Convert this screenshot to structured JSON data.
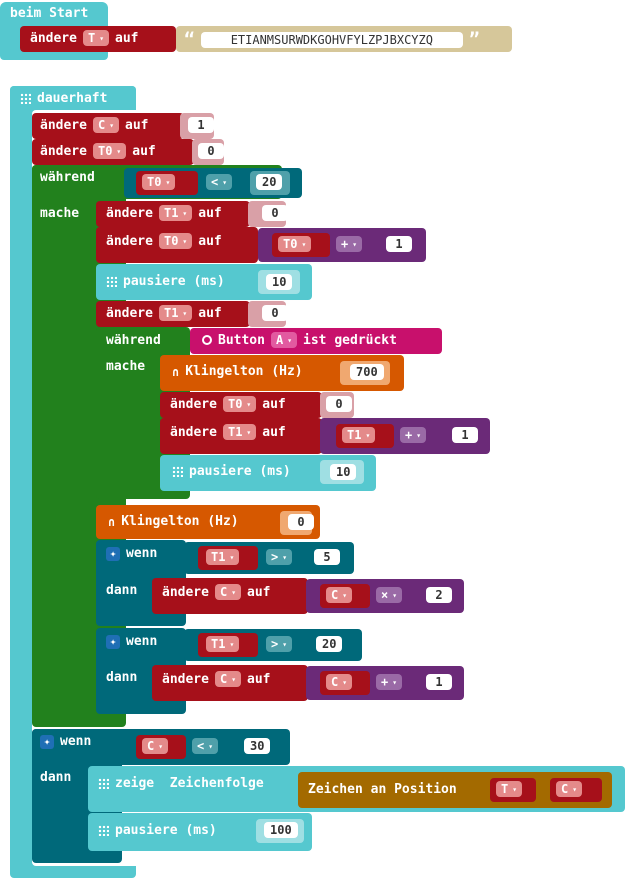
{
  "on_start": {
    "hat_label": "beim Start",
    "set_label": "ändere",
    "var": "T",
    "to_label": "auf",
    "string_value": "ETIANMSURWDKGOHVFYLZPJBXCYZQ",
    "quote_open": "“",
    "quote_close": "”"
  },
  "forever": {
    "hat_label": "dauerhaft",
    "set_c": {
      "set": "ändere",
      "var": "C",
      "to": "auf",
      "value": "1"
    },
    "set_t0": {
      "set": "ändere",
      "var": "T0",
      "to": "auf",
      "value": "0"
    },
    "while1": {
      "while_label": "während",
      "do_label": "mache",
      "cond": {
        "var": "T0",
        "op": "<",
        "value": "20"
      },
      "set_t1_a": {
        "set": "ändere",
        "var": "T1",
        "to": "auf",
        "value": "0"
      },
      "set_t0_inc": {
        "set": "ändere",
        "var": "T0",
        "to": "auf",
        "lhs": "T0",
        "op": "+",
        "rhs": "1"
      },
      "pause1": {
        "label": "pausiere (ms)",
        "value": "10"
      },
      "set_t1_b": {
        "set": "ändere",
        "var": "T1",
        "to": "auf",
        "value": "0"
      },
      "while2": {
        "while_label": "während",
        "do_label": "mache",
        "cond": {
          "label": "Button",
          "button": "A",
          "suffix": "ist gedrückt"
        },
        "tone": {
          "label": "Klingelton (Hz)",
          "value": "700"
        },
        "set_t0_z": {
          "set": "ändere",
          "var": "T0",
          "to": "auf",
          "value": "0"
        },
        "set_t1_inc": {
          "set": "ändere",
          "var": "T1",
          "to": "auf",
          "lhs": "T1",
          "op": "+",
          "rhs": "1"
        },
        "pause2": {
          "label": "pausiere (ms)",
          "value": "10"
        }
      },
      "tone0": {
        "label": "Klingelton (Hz)",
        "value": "0"
      },
      "if1": {
        "if_label": "wenn",
        "then_label": "dann",
        "cond": {
          "var": "T1",
          "op": ">",
          "value": "5"
        },
        "set": {
          "set": "ändere",
          "var": "C",
          "to": "auf",
          "lhs": "C",
          "op": "×",
          "rhs": "2"
        }
      },
      "if2": {
        "if_label": "wenn",
        "then_label": "dann",
        "cond": {
          "var": "T1",
          "op": ">",
          "value": "20"
        },
        "set": {
          "set": "ändere",
          "var": "C",
          "to": "auf",
          "lhs": "C",
          "op": "+",
          "rhs": "1"
        }
      }
    },
    "if3": {
      "if_label": "wenn",
      "then_label": "dann",
      "cond": {
        "var": "C",
        "op": "<",
        "value": "30"
      },
      "show": {
        "label": "zeige  Zeichenfolge",
        "char_label": "Zeichen an Position",
        "str_var": "T",
        "pos_var": "C"
      },
      "pause": {
        "label": "pausiere (ms)",
        "value": "100"
      }
    }
  },
  "dropdown_caret": "▾",
  "icons": {
    "grid": "grid-icon",
    "gear": "gear-icon",
    "headphones": "headphones-icon",
    "radio": "radio-button-icon"
  }
}
